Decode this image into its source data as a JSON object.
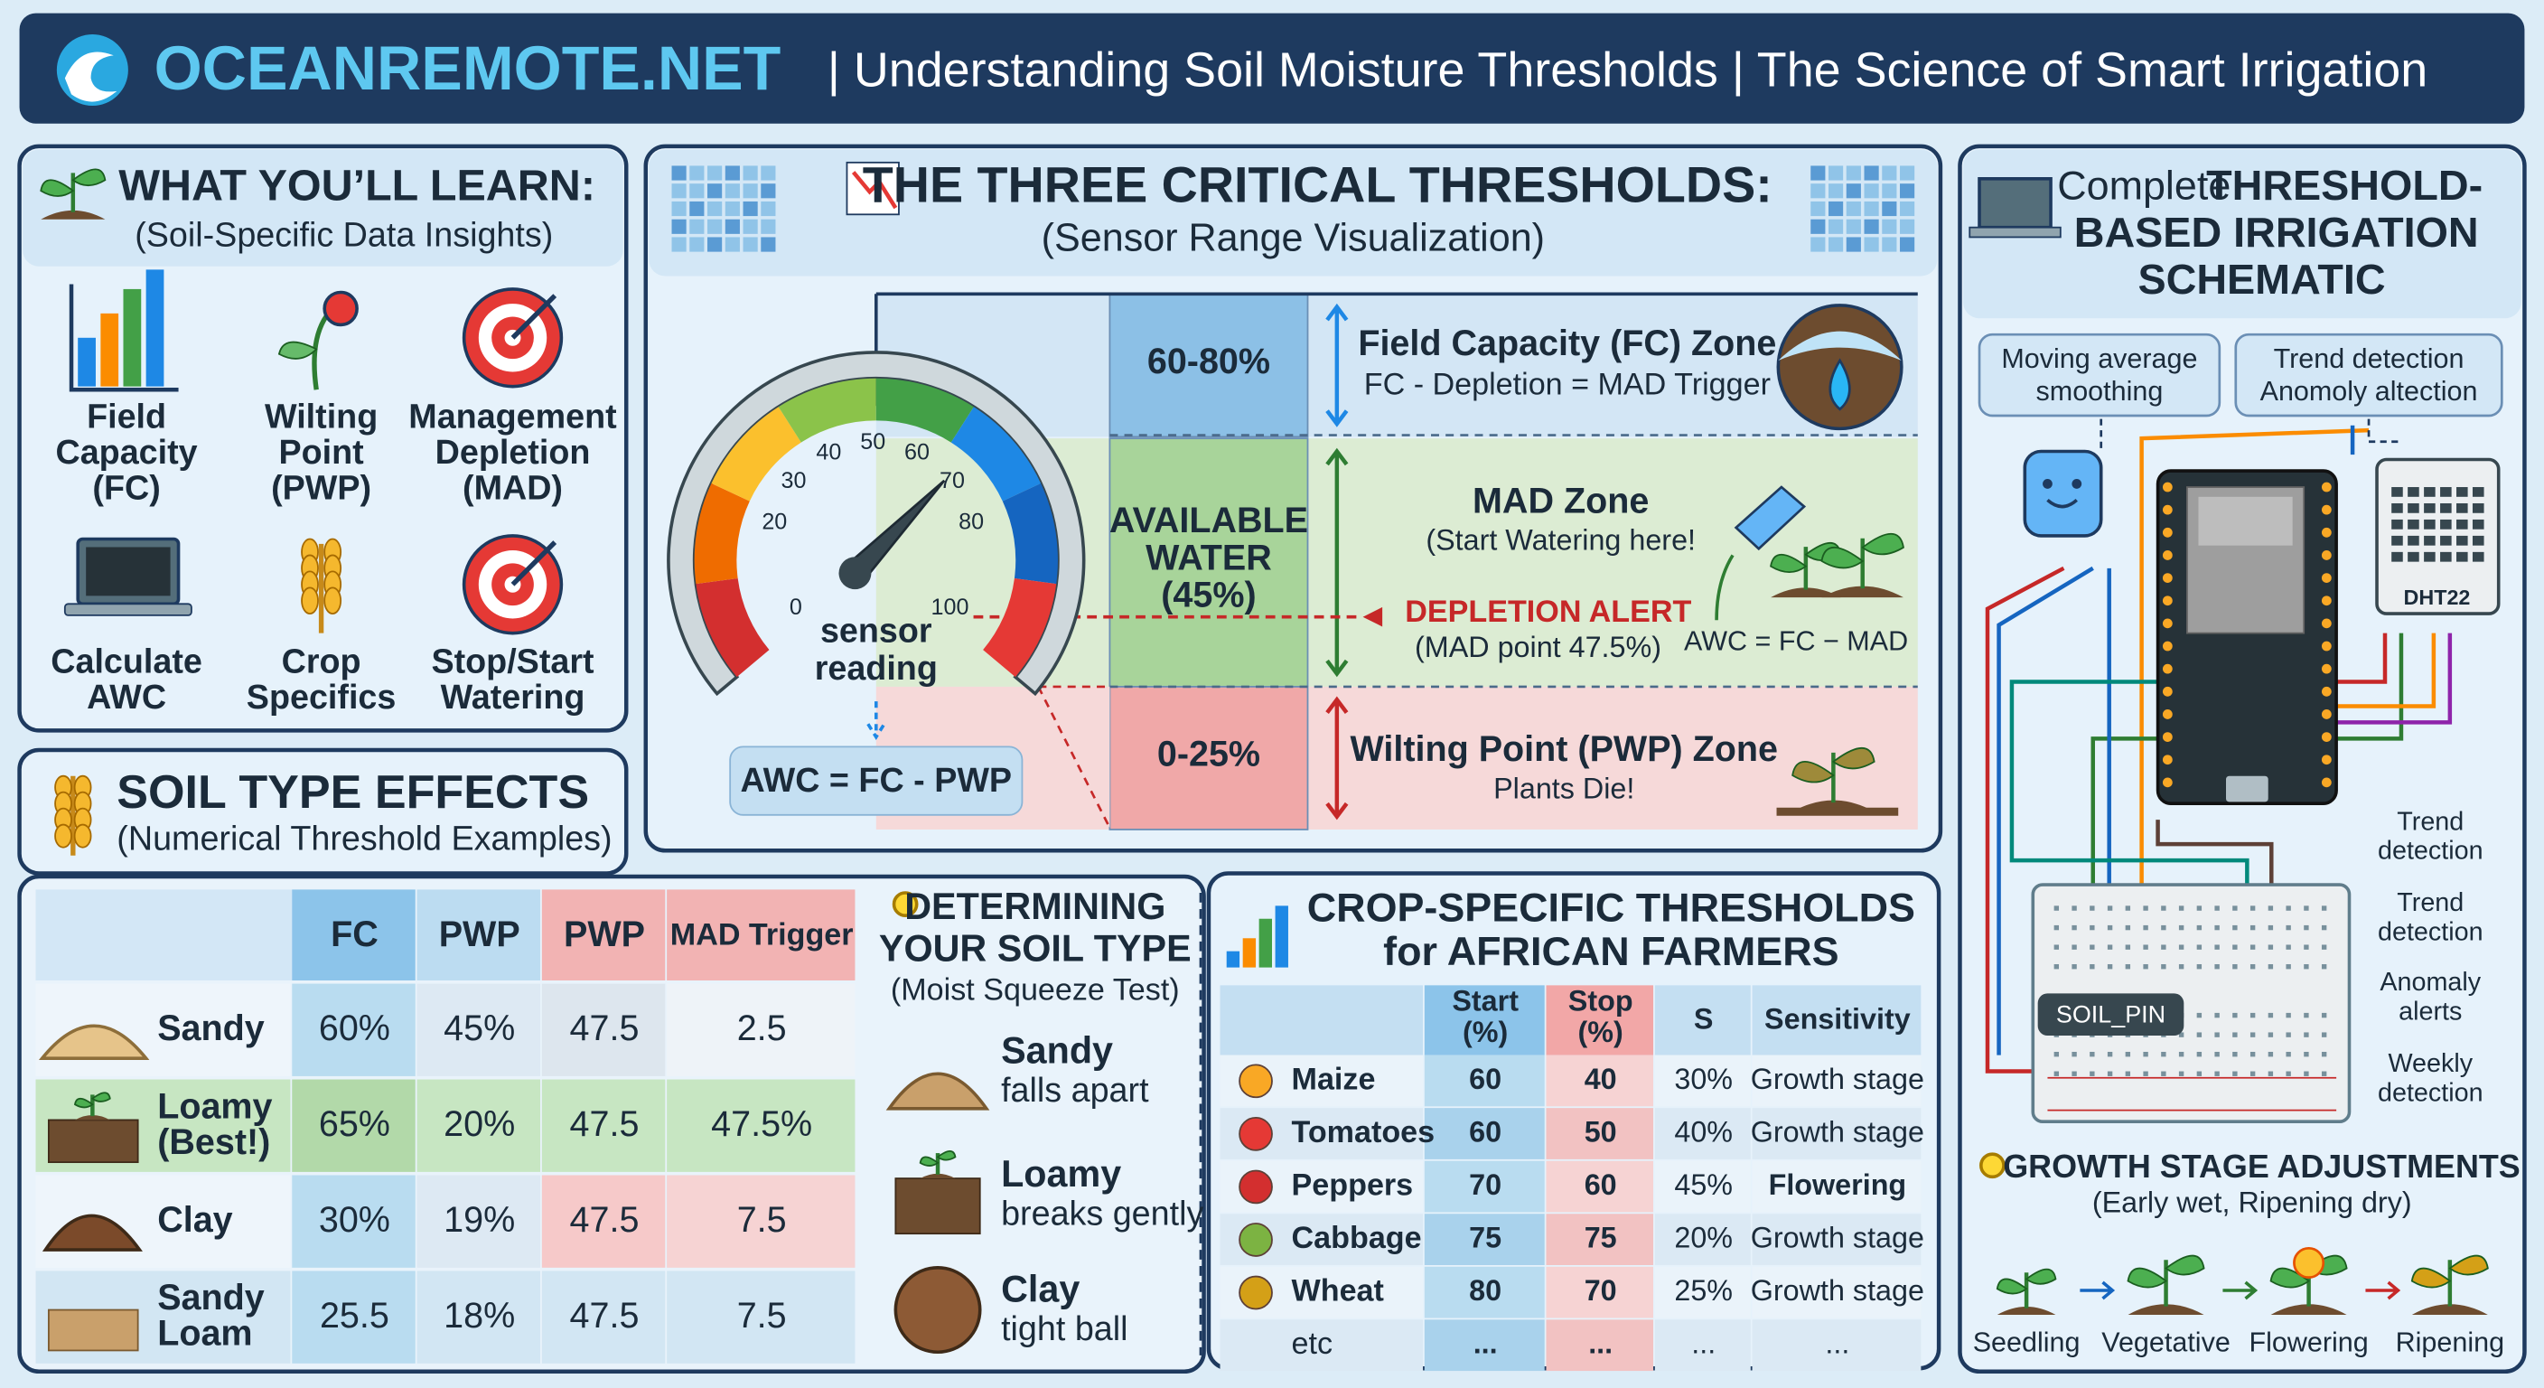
{
  "header": {
    "brand": "OCEANREMOTE.NET",
    "title": "| Understanding Soil Moisture Thresholds | The Science of Smart Irrigation"
  },
  "learn": {
    "title": "WHAT YOU’LL LEARN:",
    "subtitle": "(Soil-Specific Data Insights)",
    "items": [
      [
        "Field",
        "Capacity",
        "(FC)"
      ],
      [
        "Wilting",
        "Point",
        "(PWP)"
      ],
      [
        "Management",
        "Depletion",
        "(MAD)"
      ],
      [
        "Calculate",
        "AWC"
      ],
      [
        "Crop",
        "Specifics"
      ],
      [
        "Stop/Start",
        "Watering"
      ]
    ]
  },
  "soil_effects": {
    "title": "SOIL TYPE EFFECTS",
    "subtitle": "(Numerical Threshold Examples)",
    "columns": [
      "FC",
      "PWP",
      "PWP",
      "MAD Trigger"
    ],
    "rows": [
      {
        "name": [
          "Sandy"
        ],
        "cells": [
          "60%",
          "45%",
          "47.5",
          "2.5"
        ]
      },
      {
        "name": [
          "Loamy",
          "(Best!)"
        ],
        "cells": [
          "65%",
          "20%",
          "47.5",
          "47.5%"
        ]
      },
      {
        "name": [
          "Clay"
        ],
        "cells": [
          "30%",
          "19%",
          "47.5",
          "7.5"
        ]
      },
      {
        "name": [
          "Sandy",
          "Loam"
        ],
        "cells": [
          "25.5",
          "18%",
          "47.5",
          "7.5"
        ]
      }
    ]
  },
  "thresholds": {
    "title": "THE THREE CRITICAL THRESHOLDS:",
    "subtitle": "(Sensor Range Visualization)",
    "gauge": {
      "ticks": [
        0,
        20,
        30,
        40,
        50,
        60,
        70,
        80,
        100
      ],
      "label": [
        "sensor",
        "reading"
      ],
      "formula": "AWC = FC - PWP"
    },
    "zones": [
      {
        "range": [
          "60-80%"
        ],
        "name": "Field Capacity (FC) Zone",
        "desc": "FC - Depletion = MAD Trigger"
      },
      {
        "range": [
          "AVAILABLE",
          "WATER",
          "(45%)"
        ],
        "name": "MAD Zone",
        "desc": "(Start Watering here!"
      },
      {
        "range": [
          "0-25%"
        ],
        "name": "Wilting Point (PWP) Zone",
        "desc": "Plants Die!"
      }
    ],
    "alert": {
      "title": "DEPLETION ALERT",
      "detail": "(MAD point 47.5%)",
      "formula": "AWC = FC − MAD"
    }
  },
  "soil_type": {
    "title": [
      "DETERMINING",
      "YOUR SOIL TYPE"
    ],
    "subtitle": "(Moist Squeeze Test)",
    "items": [
      {
        "name": "Sandy",
        "desc": "falls apart"
      },
      {
        "name": "Loamy",
        "desc": "breaks gently"
      },
      {
        "name": "Clay",
        "desc": "tight ball"
      }
    ]
  },
  "crops": {
    "title": [
      "CROP-SPECIFIC THRESHOLDS",
      "for AFRICAN FARMERS"
    ],
    "columns": [
      [
        "Start",
        "(%)"
      ],
      [
        "Stop",
        "(%)"
      ],
      [
        "S"
      ],
      [
        "Sensitivity"
      ]
    ],
    "rows": [
      {
        "name": "Maize",
        "cells": [
          "60",
          "40",
          "30%",
          "Growth stage"
        ]
      },
      {
        "name": "Tomatoes",
        "cells": [
          "60",
          "50",
          "40%",
          "Growth stage"
        ]
      },
      {
        "name": "Peppers",
        "cells": [
          "70",
          "60",
          "45%",
          "Flowering"
        ]
      },
      {
        "name": "Cabbage",
        "cells": [
          "75",
          "75",
          "20%",
          "Growth stage"
        ]
      },
      {
        "name": "Wheat",
        "cells": [
          "80",
          "70",
          "25%",
          "Growth stage"
        ]
      },
      {
        "name": "etc",
        "cells": [
          "...",
          "...",
          "...",
          "..."
        ]
      }
    ]
  },
  "schematic": {
    "title_pre": "Complete",
    "title": [
      "THRESHOLD-",
      "BASED IRRIGATION",
      "SCHEMATIC"
    ],
    "boxes": [
      [
        "Moving average",
        "smoothing"
      ],
      [
        "Trend detection",
        "Anomoly altection"
      ]
    ],
    "sensor_label": "DHT22",
    "pin_label": "SOIL_PIN",
    "side": [
      [
        "Trend",
        "detection"
      ],
      [
        "Trend",
        "detection"
      ],
      [
        "Anomaly",
        "alerts"
      ],
      [
        "Weekly",
        "detection"
      ]
    ]
  },
  "growth": {
    "title": "GROWTH STAGE ADJUSTMENTS",
    "subtitle": "(Early wet, Ripening dry)",
    "stages": [
      "Seedling",
      "Vegetative",
      "Flowering",
      "Ripening"
    ]
  }
}
